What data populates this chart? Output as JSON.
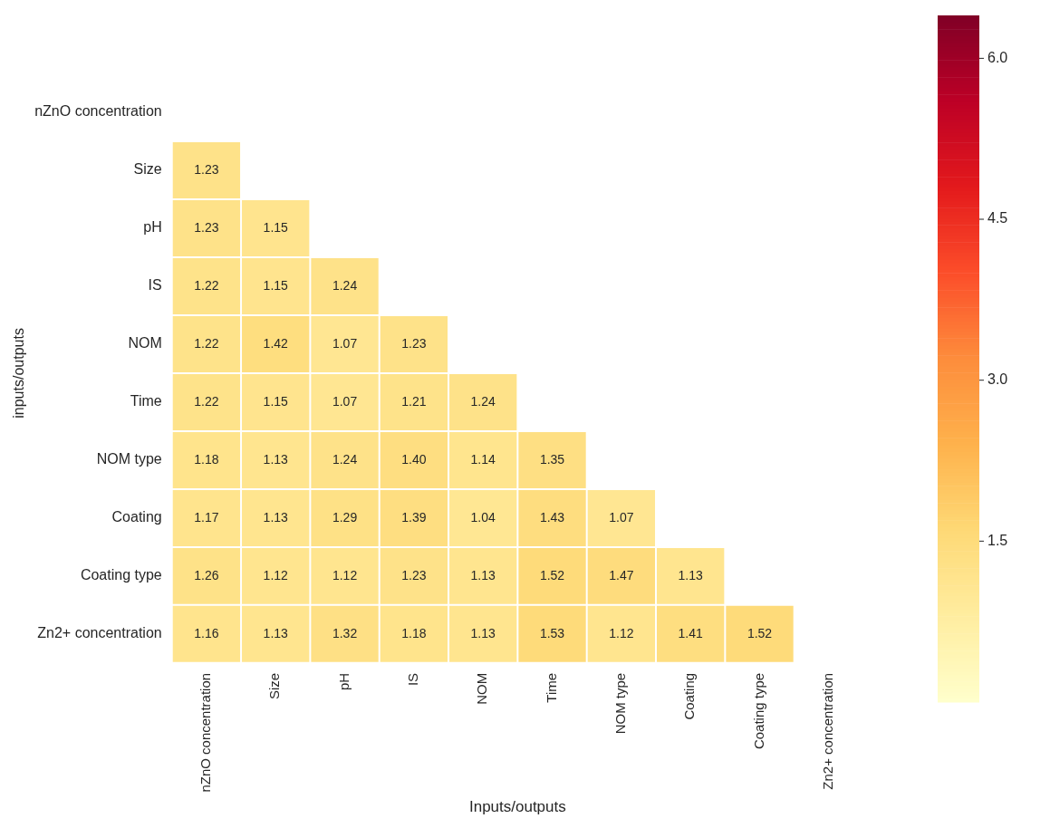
{
  "chart_data": {
    "type": "heatmap",
    "xlabel": "Inputs/outputs",
    "ylabel": "inputs/outputs",
    "categories": [
      "nZnO concentration",
      "Size",
      "pH",
      "IS",
      "NOM",
      "Time",
      "NOM type",
      "Coating",
      "Coating type",
      "Zn2+ concentration"
    ],
    "y_categories": [
      "nZnO concentration",
      "Size",
      "pH",
      "IS",
      "NOM",
      "Time",
      "NOM type",
      "Coating",
      "Coating type",
      "Zn2+ concentration"
    ],
    "cells": [
      [
        null,
        null,
        null,
        null,
        null,
        null,
        null,
        null,
        null,
        null
      ],
      [
        1.23,
        null,
        null,
        null,
        null,
        null,
        null,
        null,
        null,
        null
      ],
      [
        1.23,
        1.15,
        null,
        null,
        null,
        null,
        null,
        null,
        null,
        null
      ],
      [
        1.22,
        1.15,
        1.24,
        null,
        null,
        null,
        null,
        null,
        null,
        null
      ],
      [
        1.22,
        1.42,
        1.07,
        1.23,
        null,
        null,
        null,
        null,
        null,
        null
      ],
      [
        1.22,
        1.15,
        1.07,
        1.21,
        1.24,
        null,
        null,
        null,
        null,
        null
      ],
      [
        1.18,
        1.13,
        1.24,
        1.4,
        1.14,
        1.35,
        null,
        null,
        null,
        null
      ],
      [
        1.17,
        1.13,
        1.29,
        1.39,
        1.04,
        1.43,
        1.07,
        null,
        null,
        null
      ],
      [
        1.26,
        1.12,
        1.12,
        1.23,
        1.13,
        1.52,
        1.47,
        1.13,
        null,
        null
      ],
      [
        1.16,
        1.13,
        1.32,
        1.18,
        1.13,
        1.53,
        1.12,
        1.41,
        1.52,
        null
      ]
    ],
    "cell_labels": [
      [
        null,
        null,
        null,
        null,
        null,
        null,
        null,
        null,
        null,
        null
      ],
      [
        "1.23",
        null,
        null,
        null,
        null,
        null,
        null,
        null,
        null,
        null
      ],
      [
        "1.23",
        "1.15",
        null,
        null,
        null,
        null,
        null,
        null,
        null,
        null
      ],
      [
        "1.22",
        "1.15",
        "1.24",
        null,
        null,
        null,
        null,
        null,
        null,
        null
      ],
      [
        "1.22",
        "1.42",
        "1.07",
        "1.23",
        null,
        null,
        null,
        null,
        null,
        null
      ],
      [
        "1.22",
        "1.15",
        "1.07",
        "1.21",
        "1.24",
        null,
        null,
        null,
        null,
        null
      ],
      [
        "1.18",
        "1.13",
        "1.24",
        "1.40",
        "1.14",
        "1.35",
        null,
        null,
        null,
        null
      ],
      [
        "1.17",
        "1.13",
        "1.29",
        "1.39",
        "1.04",
        "1.43",
        "1.07",
        null,
        null,
        null
      ],
      [
        "1.26",
        "1.12",
        "1.12",
        "1.23",
        "1.13",
        "1.52",
        "1.47",
        "1.13",
        null,
        null
      ],
      [
        "1.16",
        "1.13",
        "1.32",
        "1.18",
        "1.13",
        "1.53",
        "1.12",
        "1.41",
        "1.52",
        null
      ]
    ],
    "clim": [
      0,
      6.4
    ],
    "cticks": [
      {
        "value": 1.5,
        "label": "1.5"
      },
      {
        "value": 3.0,
        "label": "3.0"
      },
      {
        "value": 4.5,
        "label": "4.5"
      },
      {
        "value": 6.0,
        "label": "6.0"
      }
    ]
  }
}
